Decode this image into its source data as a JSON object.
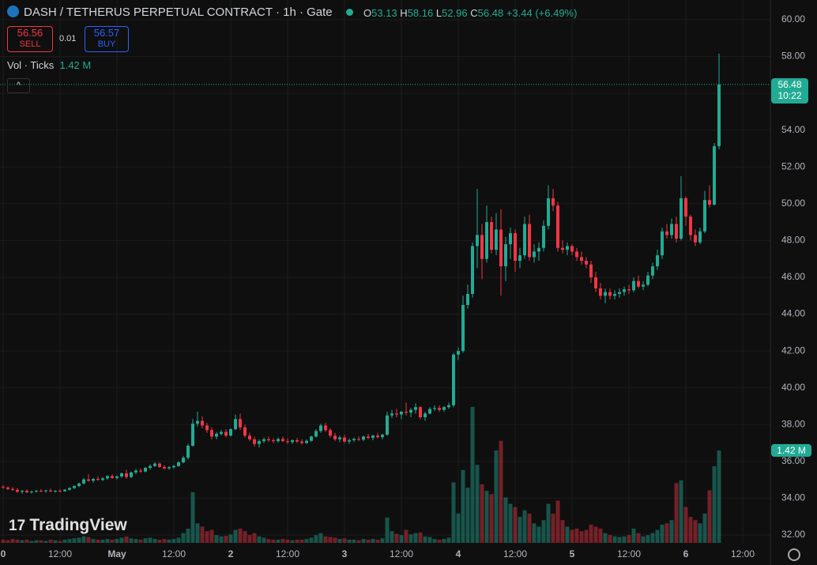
{
  "header": {
    "title": "DASH / TETHERUS PERPETUAL CONTRACT · 1h · Gate",
    "change": "+3.44 (+6.49%)",
    "o": "O",
    "h": "H",
    "l": "L",
    "c": "C",
    "sell": 56.56,
    "sell_label": "SELL",
    "spread": 0.01,
    "buy": 56.57,
    "buy_label": "BUY",
    "vol_title": "Vol · Ticks",
    "vol_value": "1.42 M",
    "countdown": "10:22",
    "logo": "TradingView"
  },
  "chart_data": {
    "type": "candlestick",
    "ylim": [
      31.53,
      61.07
    ],
    "yticks": [
      {
        "value": 32,
        "label": "32.00"
      },
      {
        "value": 34,
        "label": "34.00"
      },
      {
        "value": 36,
        "label": "36.00"
      },
      {
        "value": 38,
        "label": "38.00"
      },
      {
        "value": 40,
        "label": "40.00"
      },
      {
        "value": 42,
        "label": "42.00"
      },
      {
        "value": 44,
        "label": "44.00"
      },
      {
        "value": 46,
        "label": "46.00"
      },
      {
        "value": 48,
        "label": "48.00"
      },
      {
        "value": 50,
        "label": "50.00"
      },
      {
        "value": 52,
        "label": "52.00"
      },
      {
        "value": 54,
        "label": "54.00"
      },
      {
        "value": 56,
        "label": "56.00"
      },
      {
        "value": 58,
        "label": "58.00"
      },
      {
        "value": 60,
        "label": "60.00"
      }
    ],
    "xticks": [
      {
        "value": 0,
        "label": "0"
      },
      {
        "value": 12,
        "label": "12:00"
      },
      {
        "value": 24,
        "label": "May"
      },
      {
        "value": 36,
        "label": "12:00"
      },
      {
        "value": 48,
        "label": "2"
      },
      {
        "value": 60,
        "label": "12:00"
      },
      {
        "value": 72,
        "label": "3"
      },
      {
        "value": 84,
        "label": "12:00"
      },
      {
        "value": 96,
        "label": "4"
      },
      {
        "value": 108,
        "label": "12:00"
      },
      {
        "value": 120,
        "label": "5"
      },
      {
        "value": 132,
        "label": "12:00"
      },
      {
        "value": 144,
        "label": "6"
      },
      {
        "value": 156,
        "label": "12:00"
      }
    ],
    "up_color": "#22ab94",
    "down_color": "#f23645",
    "grid": true,
    "candles": [
      [
        34.62,
        34.7,
        34.5,
        34.58,
        0.05
      ],
      [
        34.58,
        34.65,
        34.45,
        34.5,
        0.04
      ],
      [
        34.5,
        34.6,
        34.4,
        34.45,
        0.06
      ],
      [
        34.45,
        34.55,
        34.3,
        34.35,
        0.05
      ],
      [
        34.35,
        34.45,
        34.25,
        34.4,
        0.04
      ],
      [
        34.4,
        34.48,
        34.28,
        34.32,
        0.05
      ],
      [
        34.32,
        34.42,
        34.25,
        34.36,
        0.03
      ],
      [
        34.36,
        34.45,
        34.3,
        34.4,
        0.04
      ],
      [
        34.4,
        34.5,
        34.33,
        34.38,
        0.04
      ],
      [
        34.38,
        34.46,
        34.3,
        34.42,
        0.03
      ],
      [
        34.42,
        34.52,
        34.34,
        34.36,
        0.05
      ],
      [
        34.36,
        34.44,
        34.3,
        34.4,
        0.04
      ],
      [
        34.4,
        34.48,
        34.32,
        34.38,
        0.03
      ],
      [
        34.38,
        34.5,
        34.35,
        34.46,
        0.05
      ],
      [
        34.46,
        34.6,
        34.42,
        34.55,
        0.06
      ],
      [
        34.55,
        34.7,
        34.5,
        34.66,
        0.07
      ],
      [
        34.66,
        34.85,
        34.6,
        34.8,
        0.08
      ],
      [
        34.8,
        35.1,
        34.75,
        35.02,
        0.1
      ],
      [
        35.02,
        35.3,
        34.9,
        34.95,
        0.09
      ],
      [
        34.95,
        35.1,
        34.85,
        35.05,
        0.06
      ],
      [
        35.05,
        35.2,
        34.95,
        35.0,
        0.05
      ],
      [
        35.0,
        35.15,
        34.92,
        35.08,
        0.05
      ],
      [
        35.08,
        35.25,
        35.0,
        35.2,
        0.06
      ],
      [
        35.2,
        35.3,
        35.05,
        35.1,
        0.05
      ],
      [
        35.1,
        35.25,
        35.02,
        35.18,
        0.06
      ],
      [
        35.18,
        35.4,
        35.1,
        35.35,
        0.08
      ],
      [
        35.35,
        35.55,
        35.05,
        35.15,
        0.1
      ],
      [
        35.15,
        35.45,
        35.1,
        35.4,
        0.07
      ],
      [
        35.4,
        35.6,
        35.3,
        35.5,
        0.06
      ],
      [
        35.5,
        35.62,
        35.38,
        35.45,
        0.05
      ],
      [
        35.45,
        35.7,
        35.4,
        35.65,
        0.07
      ],
      [
        35.65,
        35.85,
        35.55,
        35.75,
        0.08
      ],
      [
        35.75,
        35.95,
        35.7,
        35.88,
        0.06
      ],
      [
        35.88,
        35.95,
        35.65,
        35.7,
        0.05
      ],
      [
        35.7,
        35.8,
        35.55,
        35.62,
        0.06
      ],
      [
        35.62,
        35.75,
        35.55,
        35.68,
        0.05
      ],
      [
        35.68,
        35.82,
        35.6,
        35.75,
        0.06
      ],
      [
        35.75,
        36.0,
        35.7,
        35.95,
        0.08
      ],
      [
        35.95,
        36.3,
        35.9,
        36.2,
        0.15
      ],
      [
        36.2,
        36.95,
        36.1,
        36.85,
        0.22
      ],
      [
        36.85,
        38.3,
        36.8,
        38.05,
        0.78
      ],
      [
        38.05,
        38.7,
        37.9,
        38.2,
        0.3
      ],
      [
        38.2,
        38.45,
        37.8,
        37.95,
        0.25
      ],
      [
        37.95,
        38.1,
        37.55,
        37.7,
        0.18
      ],
      [
        37.7,
        37.85,
        37.2,
        37.35,
        0.2
      ],
      [
        37.35,
        37.6,
        37.2,
        37.5,
        0.12
      ],
      [
        37.5,
        37.7,
        37.4,
        37.6,
        0.1
      ],
      [
        37.6,
        37.75,
        37.3,
        37.4,
        0.11
      ],
      [
        37.4,
        37.8,
        37.35,
        37.75,
        0.13
      ],
      [
        37.75,
        38.55,
        37.7,
        38.3,
        0.2
      ],
      [
        38.3,
        38.6,
        37.7,
        37.85,
        0.22
      ],
      [
        37.85,
        38.0,
        37.3,
        37.4,
        0.18
      ],
      [
        37.4,
        37.55,
        37.1,
        37.2,
        0.12
      ],
      [
        37.2,
        37.35,
        36.8,
        36.95,
        0.15
      ],
      [
        36.95,
        37.2,
        36.75,
        37.1,
        0.1
      ],
      [
        37.1,
        37.3,
        37.0,
        37.2,
        0.08
      ],
      [
        37.2,
        37.35,
        37.05,
        37.15,
        0.06
      ],
      [
        37.15,
        37.25,
        37.0,
        37.1,
        0.05
      ],
      [
        37.1,
        37.3,
        37.02,
        37.22,
        0.05
      ],
      [
        37.22,
        37.35,
        37.05,
        37.1,
        0.06
      ],
      [
        37.1,
        37.25,
        36.95,
        37.05,
        0.05
      ],
      [
        37.05,
        37.2,
        36.95,
        37.15,
        0.04
      ],
      [
        37.15,
        37.28,
        37.0,
        37.08,
        0.05
      ],
      [
        37.08,
        37.2,
        36.92,
        37.0,
        0.05
      ],
      [
        37.0,
        37.2,
        36.95,
        37.12,
        0.06
      ],
      [
        37.12,
        37.4,
        37.05,
        37.35,
        0.08
      ],
      [
        37.35,
        37.75,
        37.3,
        37.65,
        0.12
      ],
      [
        37.65,
        38.05,
        37.55,
        37.95,
        0.15
      ],
      [
        37.95,
        38.1,
        37.6,
        37.7,
        0.1
      ],
      [
        37.7,
        37.8,
        37.3,
        37.4,
        0.09
      ],
      [
        37.4,
        37.55,
        37.1,
        37.2,
        0.08
      ],
      [
        37.2,
        37.4,
        37.05,
        37.3,
        0.06
      ],
      [
        37.3,
        37.45,
        37.0,
        37.08,
        0.07
      ],
      [
        37.08,
        37.25,
        36.95,
        37.15,
        0.05
      ],
      [
        37.15,
        37.3,
        37.05,
        37.22,
        0.05
      ],
      [
        37.22,
        37.35,
        37.1,
        37.18,
        0.04
      ],
      [
        37.18,
        37.4,
        37.1,
        37.35,
        0.06
      ],
      [
        37.35,
        37.5,
        37.2,
        37.28,
        0.05
      ],
      [
        37.28,
        37.45,
        37.15,
        37.4,
        0.06
      ],
      [
        37.4,
        37.55,
        37.25,
        37.32,
        0.05
      ],
      [
        37.32,
        37.5,
        37.2,
        37.45,
        0.07
      ],
      [
        37.45,
        38.7,
        37.4,
        38.5,
        0.39
      ],
      [
        38.5,
        38.8,
        38.35,
        38.6,
        0.18
      ],
      [
        38.6,
        38.85,
        38.4,
        38.55,
        0.14
      ],
      [
        38.55,
        38.75,
        38.3,
        38.7,
        0.12
      ],
      [
        38.7,
        39.2,
        38.5,
        38.65,
        0.2
      ],
      [
        38.65,
        38.9,
        38.4,
        38.8,
        0.13
      ],
      [
        38.8,
        39.15,
        38.6,
        38.95,
        0.15
      ],
      [
        38.95,
        39.0,
        38.3,
        38.4,
        0.16
      ],
      [
        38.4,
        38.7,
        38.2,
        38.6,
        0.1
      ],
      [
        38.6,
        38.95,
        38.55,
        38.85,
        0.09
      ],
      [
        38.85,
        39.05,
        38.75,
        38.9,
        0.06
      ],
      [
        38.9,
        39.05,
        38.7,
        38.8,
        0.05
      ],
      [
        38.8,
        39.0,
        38.7,
        38.95,
        0.06
      ],
      [
        38.95,
        39.2,
        38.85,
        39.05,
        0.08
      ],
      [
        39.05,
        41.9,
        38.95,
        41.8,
        0.93
      ],
      [
        41.8,
        42.2,
        41.5,
        42.0,
        0.45
      ],
      [
        42.0,
        45.0,
        41.9,
        44.5,
        1.12
      ],
      [
        44.5,
        45.6,
        44.3,
        45.1,
        0.85
      ],
      [
        45.1,
        47.9,
        44.9,
        47.7,
        2.09
      ],
      [
        47.7,
        50.8,
        46.5,
        48.3,
        1.2
      ],
      [
        48.3,
        48.9,
        45.9,
        47.0,
        0.9
      ],
      [
        47.0,
        49.9,
        46.8,
        49.0,
        0.8
      ],
      [
        49.0,
        49.3,
        47.3,
        47.5,
        0.75
      ],
      [
        47.5,
        49.5,
        47.2,
        48.6,
        1.42
      ],
      [
        48.6,
        49.7,
        45.0,
        46.6,
        1.57
      ],
      [
        46.6,
        48.2,
        45.8,
        47.8,
        0.7
      ],
      [
        47.8,
        48.7,
        47.0,
        48.4,
        0.6
      ],
      [
        48.4,
        48.6,
        46.3,
        46.9,
        0.55
      ],
      [
        46.9,
        47.6,
        46.5,
        47.2,
        0.4
      ],
      [
        47.2,
        49.3,
        47.0,
        48.9,
        0.5
      ],
      [
        48.9,
        49.4,
        46.9,
        47.1,
        0.45
      ],
      [
        47.1,
        47.8,
        46.8,
        47.4,
        0.3
      ],
      [
        47.4,
        47.9,
        46.9,
        47.6,
        0.25
      ],
      [
        47.6,
        49.1,
        47.4,
        48.8,
        0.35
      ],
      [
        48.8,
        51.0,
        48.6,
        50.3,
        0.6
      ],
      [
        50.3,
        50.8,
        49.6,
        49.9,
        0.45
      ],
      [
        49.9,
        50.1,
        47.4,
        47.6,
        0.65
      ],
      [
        47.6,
        48.0,
        47.3,
        47.5,
        0.35
      ],
      [
        47.5,
        47.9,
        47.2,
        47.7,
        0.25
      ],
      [
        47.7,
        47.8,
        47.2,
        47.4,
        0.2
      ],
      [
        47.4,
        47.6,
        46.9,
        47.1,
        0.22
      ],
      [
        47.1,
        47.4,
        46.7,
        46.9,
        0.18
      ],
      [
        46.9,
        47.1,
        46.5,
        46.7,
        0.2
      ],
      [
        46.7,
        46.9,
        45.7,
        46.0,
        0.28
      ],
      [
        46.0,
        46.3,
        45.2,
        45.4,
        0.25
      ],
      [
        45.4,
        45.7,
        44.8,
        45.0,
        0.22
      ],
      [
        45.0,
        45.4,
        44.6,
        45.2,
        0.15
      ],
      [
        45.2,
        45.4,
        44.8,
        45.0,
        0.12
      ],
      [
        45.0,
        45.3,
        44.8,
        45.1,
        0.1
      ],
      [
        45.1,
        45.4,
        44.9,
        45.2,
        0.09
      ],
      [
        45.2,
        45.5,
        45.0,
        45.35,
        0.1
      ],
      [
        45.35,
        45.6,
        45.1,
        45.3,
        0.12
      ],
      [
        45.3,
        46.0,
        45.2,
        45.8,
        0.22
      ],
      [
        45.8,
        46.1,
        45.4,
        45.5,
        0.15
      ],
      [
        45.5,
        45.8,
        45.3,
        45.6,
        0.1
      ],
      [
        45.6,
        46.3,
        45.5,
        46.1,
        0.12
      ],
      [
        46.1,
        46.8,
        45.9,
        46.6,
        0.15
      ],
      [
        46.6,
        47.5,
        46.4,
        47.2,
        0.2
      ],
      [
        47.2,
        48.7,
        47.0,
        48.5,
        0.28
      ],
      [
        48.5,
        48.9,
        48.1,
        48.3,
        0.3
      ],
      [
        48.3,
        49.2,
        48.1,
        48.9,
        0.35
      ],
      [
        48.9,
        49.3,
        47.9,
        48.1,
        0.92
      ],
      [
        48.1,
        51.5,
        48.0,
        50.3,
        0.96
      ],
      [
        50.3,
        50.4,
        48.8,
        49.3,
        0.55
      ],
      [
        49.3,
        49.4,
        48.0,
        48.3,
        0.4
      ],
      [
        48.3,
        48.6,
        47.7,
        47.9,
        0.35
      ],
      [
        47.9,
        48.7,
        47.8,
        48.5,
        0.3
      ],
      [
        48.5,
        50.7,
        48.4,
        50.2,
        0.45
      ],
      [
        50.2,
        51.0,
        49.8,
        49.95,
        0.81
      ],
      [
        49.95,
        53.3,
        49.9,
        53.13,
        1.18
      ],
      [
        53.13,
        58.16,
        52.96,
        56.48,
        1.42
      ]
    ]
  }
}
